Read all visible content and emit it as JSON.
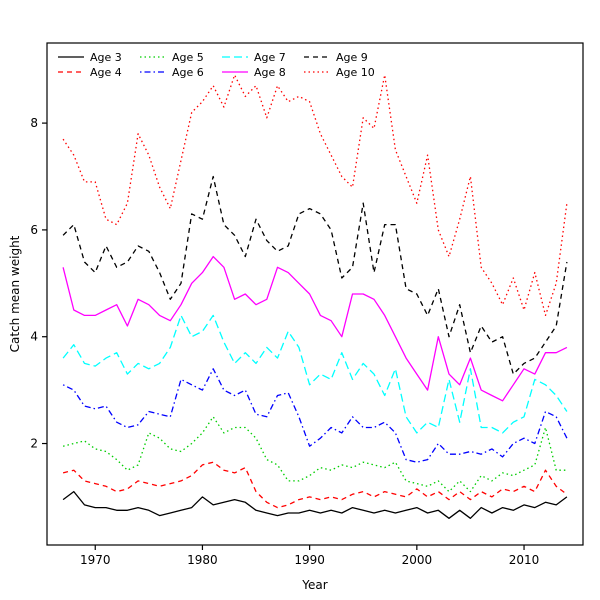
{
  "figure": {
    "kind": "r-base-line-plot",
    "background": "#ffffff",
    "border_color": "#000000"
  },
  "chart_data": {
    "type": "line",
    "title": "",
    "xlabel": "Year",
    "ylabel": "Catch mean weight",
    "xlim": [
      1965.5,
      2015.5
    ],
    "ylim": [
      0.1,
      9.5
    ],
    "x_ticks": [
      1970,
      1980,
      1990,
      2000,
      2010
    ],
    "y_ticks": [
      2,
      4,
      6,
      8
    ],
    "grid": false,
    "legend_position": "top-left",
    "legend_columns": 4,
    "x": [
      1967,
      1968,
      1969,
      1970,
      1971,
      1972,
      1973,
      1974,
      1975,
      1976,
      1977,
      1978,
      1979,
      1980,
      1981,
      1982,
      1983,
      1984,
      1985,
      1986,
      1987,
      1988,
      1989,
      1990,
      1991,
      1992,
      1993,
      1994,
      1995,
      1996,
      1997,
      1998,
      1999,
      2000,
      2001,
      2002,
      2003,
      2004,
      2005,
      2006,
      2007,
      2008,
      2009,
      2010,
      2011,
      2012,
      2013,
      2014
    ],
    "series": [
      {
        "name": "Age 3",
        "color": "#000000",
        "linestyle": "solid",
        "values": [
          0.95,
          1.1,
          0.85,
          0.8,
          0.8,
          0.75,
          0.75,
          0.8,
          0.75,
          0.65,
          0.7,
          0.75,
          0.8,
          1.0,
          0.85,
          0.9,
          0.95,
          0.9,
          0.75,
          0.7,
          0.65,
          0.7,
          0.7,
          0.75,
          0.7,
          0.75,
          0.7,
          0.8,
          0.75,
          0.7,
          0.75,
          0.7,
          0.75,
          0.8,
          0.7,
          0.75,
          0.6,
          0.75,
          0.6,
          0.8,
          0.7,
          0.8,
          0.75,
          0.85,
          0.8,
          0.9,
          0.85,
          1.0
        ]
      },
      {
        "name": "Age 4",
        "color": "#ff0000",
        "linestyle": "dashed",
        "values": [
          1.45,
          1.5,
          1.3,
          1.25,
          1.2,
          1.1,
          1.15,
          1.3,
          1.25,
          1.2,
          1.25,
          1.3,
          1.4,
          1.6,
          1.65,
          1.5,
          1.45,
          1.55,
          1.1,
          0.9,
          0.8,
          0.85,
          0.95,
          1.0,
          0.95,
          1.0,
          0.95,
          1.05,
          1.1,
          1.0,
          1.1,
          1.05,
          1.0,
          1.15,
          1.0,
          1.1,
          0.95,
          1.1,
          0.95,
          1.1,
          1.0,
          1.15,
          1.1,
          1.2,
          1.1,
          1.5,
          1.2,
          1.05
        ]
      },
      {
        "name": "Age 5",
        "color": "#00cd00",
        "linestyle": "dotted",
        "values": [
          1.95,
          2.0,
          2.05,
          1.9,
          1.85,
          1.7,
          1.5,
          1.6,
          2.2,
          2.1,
          1.9,
          1.85,
          2.0,
          2.2,
          2.5,
          2.2,
          2.3,
          2.3,
          2.1,
          1.7,
          1.6,
          1.3,
          1.3,
          1.4,
          1.55,
          1.5,
          1.6,
          1.55,
          1.65,
          1.6,
          1.55,
          1.65,
          1.3,
          1.25,
          1.2,
          1.3,
          1.1,
          1.3,
          1.1,
          1.4,
          1.3,
          1.45,
          1.4,
          1.5,
          1.6,
          2.3,
          1.5,
          1.5
        ]
      },
      {
        "name": "Age 6",
        "color": "#0000ff",
        "linestyle": "dotdash",
        "values": [
          3.1,
          3.0,
          2.7,
          2.65,
          2.7,
          2.4,
          2.3,
          2.35,
          2.6,
          2.55,
          2.5,
          3.2,
          3.1,
          3.0,
          3.4,
          3.0,
          2.9,
          3.0,
          2.55,
          2.5,
          2.9,
          2.95,
          2.5,
          1.95,
          2.1,
          2.3,
          2.2,
          2.5,
          2.3,
          2.3,
          2.4,
          2.2,
          1.7,
          1.65,
          1.7,
          2.0,
          1.8,
          1.8,
          1.85,
          1.8,
          1.9,
          1.75,
          2.0,
          2.1,
          2.0,
          2.6,
          2.5,
          2.1
        ]
      },
      {
        "name": "Age 7",
        "color": "#00ffff",
        "linestyle": "longdash",
        "values": [
          3.6,
          3.85,
          3.5,
          3.45,
          3.6,
          3.7,
          3.3,
          3.5,
          3.4,
          3.5,
          3.8,
          4.4,
          4.0,
          4.1,
          4.4,
          3.9,
          3.5,
          3.7,
          3.5,
          3.8,
          3.6,
          4.1,
          3.8,
          3.1,
          3.3,
          3.2,
          3.7,
          3.2,
          3.5,
          3.3,
          2.9,
          3.4,
          2.5,
          2.2,
          2.4,
          2.3,
          3.2,
          2.4,
          3.4,
          2.3,
          2.3,
          2.2,
          2.4,
          2.5,
          3.2,
          3.1,
          2.9,
          2.6
        ]
      },
      {
        "name": "Age 8",
        "color": "#ff00ff",
        "linestyle": "solid",
        "values": [
          5.3,
          4.5,
          4.4,
          4.4,
          4.5,
          4.6,
          4.2,
          4.7,
          4.6,
          4.4,
          4.3,
          4.6,
          5.0,
          5.2,
          5.5,
          5.3,
          4.7,
          4.8,
          4.6,
          4.7,
          5.3,
          5.2,
          5.0,
          4.8,
          4.4,
          4.3,
          4.0,
          4.8,
          4.8,
          4.7,
          4.4,
          4.0,
          3.6,
          3.3,
          3.0,
          4.0,
          3.3,
          3.1,
          3.6,
          3.0,
          2.9,
          2.8,
          3.1,
          3.4,
          3.3,
          3.7,
          3.7,
          3.8
        ]
      },
      {
        "name": "Age 9",
        "color": "#000000",
        "linestyle": "dashed",
        "values": [
          5.9,
          6.1,
          5.4,
          5.2,
          5.7,
          5.3,
          5.4,
          5.7,
          5.6,
          5.2,
          4.7,
          5.0,
          6.3,
          6.2,
          7.0,
          6.1,
          5.9,
          5.5,
          6.2,
          5.8,
          5.6,
          5.7,
          6.3,
          6.4,
          6.3,
          6.0,
          5.1,
          5.3,
          6.5,
          5.2,
          6.1,
          6.1,
          4.9,
          4.8,
          4.4,
          4.9,
          4.0,
          4.6,
          3.7,
          4.2,
          3.9,
          4.0,
          3.3,
          3.5,
          3.6,
          3.9,
          4.2,
          5.4
        ]
      },
      {
        "name": "Age 10",
        "color": "#ff0000",
        "linestyle": "dotted",
        "values": [
          7.7,
          7.4,
          6.9,
          6.9,
          6.2,
          6.1,
          6.5,
          7.8,
          7.4,
          6.8,
          6.4,
          7.3,
          8.2,
          8.4,
          8.7,
          8.3,
          8.9,
          8.5,
          8.7,
          8.1,
          8.7,
          8.4,
          8.5,
          8.4,
          7.8,
          7.4,
          7.0,
          6.8,
          8.1,
          7.9,
          8.9,
          7.5,
          7.0,
          6.5,
          7.4,
          6.0,
          5.5,
          6.2,
          7.0,
          5.3,
          5.0,
          4.6,
          5.1,
          4.5,
          5.2,
          4.4,
          5.0,
          6.5
        ]
      }
    ]
  }
}
